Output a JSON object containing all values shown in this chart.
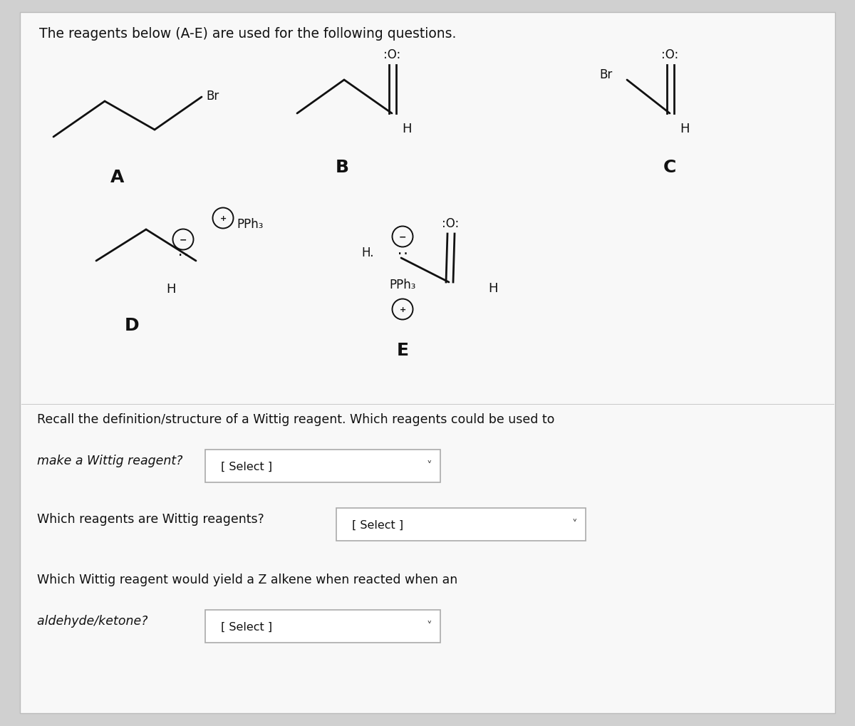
{
  "bg_color": "#d0d0d0",
  "panel_color": "#f0f0f0",
  "text_color": "#111111",
  "title": "The reagents below (A-E) are used for the following questions.",
  "q1a": "Recall the definition/structure of a Wittig reagent. Which reagents could be used to",
  "q1b": "make a Wittig reagent?",
  "q2": "Which reagents are Wittig reagents?",
  "q3a": "Which Wittig reagent would yield a Z alkene when reacted when an",
  "q3b": "aldehyde/ketone?"
}
